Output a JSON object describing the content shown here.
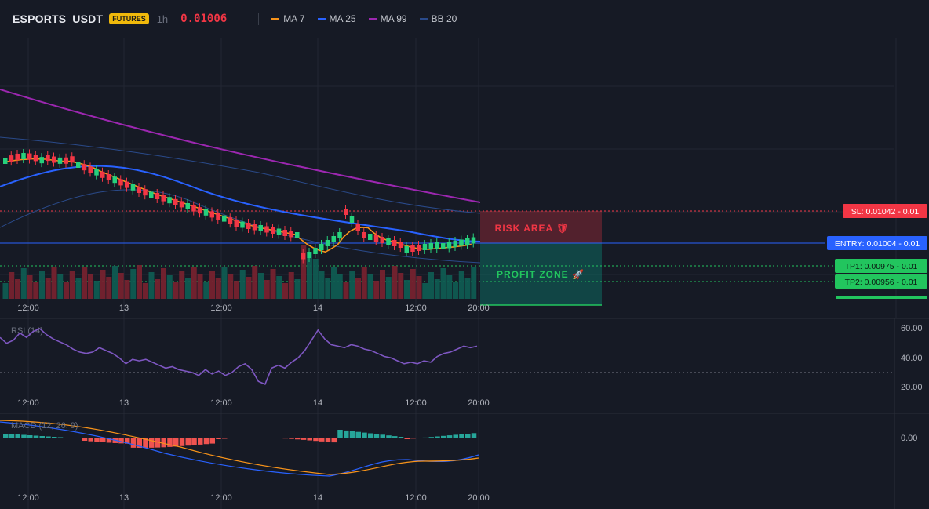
{
  "header": {
    "symbol": "ESPORTS_USDT",
    "badge": "FUTURES",
    "timeframe": "1h",
    "price": "0.01006",
    "legend": [
      {
        "label": "MA 7",
        "color": "#f7931a"
      },
      {
        "label": "MA 25",
        "color": "#2962ff"
      },
      {
        "label": "MA 99",
        "color": "#9c27b0"
      },
      {
        "label": "BB 20",
        "color": "#2a4a8a"
      }
    ]
  },
  "x_axis_labels": [
    "12:00",
    "13",
    "12:00",
    "14",
    "12:00",
    "20:00"
  ],
  "zones": {
    "risk": "RISK AREA 🛡",
    "profit": "PROFIT ZONE 🚀"
  },
  "price_tags": {
    "sl": "SL: 0.01042 - 0.01",
    "entry": "ENTRY: 0.01004 - 0.01",
    "tp1": "TP1: 0.00975 - 0.01",
    "tp2": "TP2: 0.00956 - 0.01"
  },
  "rsi": {
    "label": "RSI (14)",
    "axis": [
      "60.00",
      "40.00",
      "20.00"
    ],
    "values": [
      54,
      50,
      52,
      57,
      54,
      58,
      60,
      56,
      53,
      51,
      49,
      46,
      44,
      43,
      44,
      47,
      45,
      43,
      40,
      36,
      39,
      38,
      39,
      37,
      35,
      33,
      34,
      32,
      31,
      30,
      28,
      32,
      29,
      31,
      28,
      30,
      34,
      36,
      32,
      24,
      22,
      33,
      35,
      33,
      37,
      40,
      45,
      52,
      59,
      53,
      49,
      48,
      47,
      49,
      48,
      46,
      45,
      43,
      41,
      40,
      38,
      36,
      37,
      36,
      38,
      37,
      41,
      43,
      44,
      46,
      48,
      47,
      48
    ]
  },
  "macd": {
    "label": "MACD (12, 26, 9)",
    "axis": [
      "0.00"
    ]
  },
  "colors": {
    "up": "#089981",
    "down": "#f23645",
    "accent_up": "#22c55e",
    "entry": "#2962ff"
  }
}
